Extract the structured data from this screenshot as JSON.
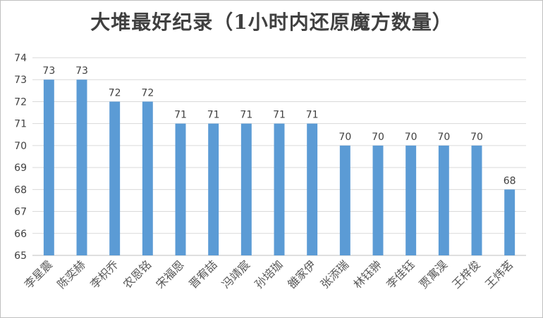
{
  "chart_data": {
    "type": "bar",
    "title": "大堆最好纪录（1小时内还原魔方数量）",
    "xlabel": "",
    "ylabel": "",
    "ylim": [
      65,
      74
    ],
    "yticks": [
      65,
      66,
      67,
      68,
      69,
      70,
      71,
      72,
      73,
      74
    ],
    "grid": true,
    "bar_color": "#5b9bd5",
    "categories": [
      "李星震",
      "陈奕赫",
      "李枳乔",
      "农恩铭",
      "宋福恩",
      "晋宥喆",
      "冯靖宸",
      "孙培珈",
      "雒家伊",
      "张添瑞",
      "林钰翀",
      "李佳钰",
      "贾寓淏",
      "王梓俊",
      "王炜茗"
    ],
    "values": [
      73,
      73,
      72,
      72,
      71,
      71,
      71,
      71,
      71,
      70,
      70,
      70,
      70,
      70,
      68
    ]
  }
}
